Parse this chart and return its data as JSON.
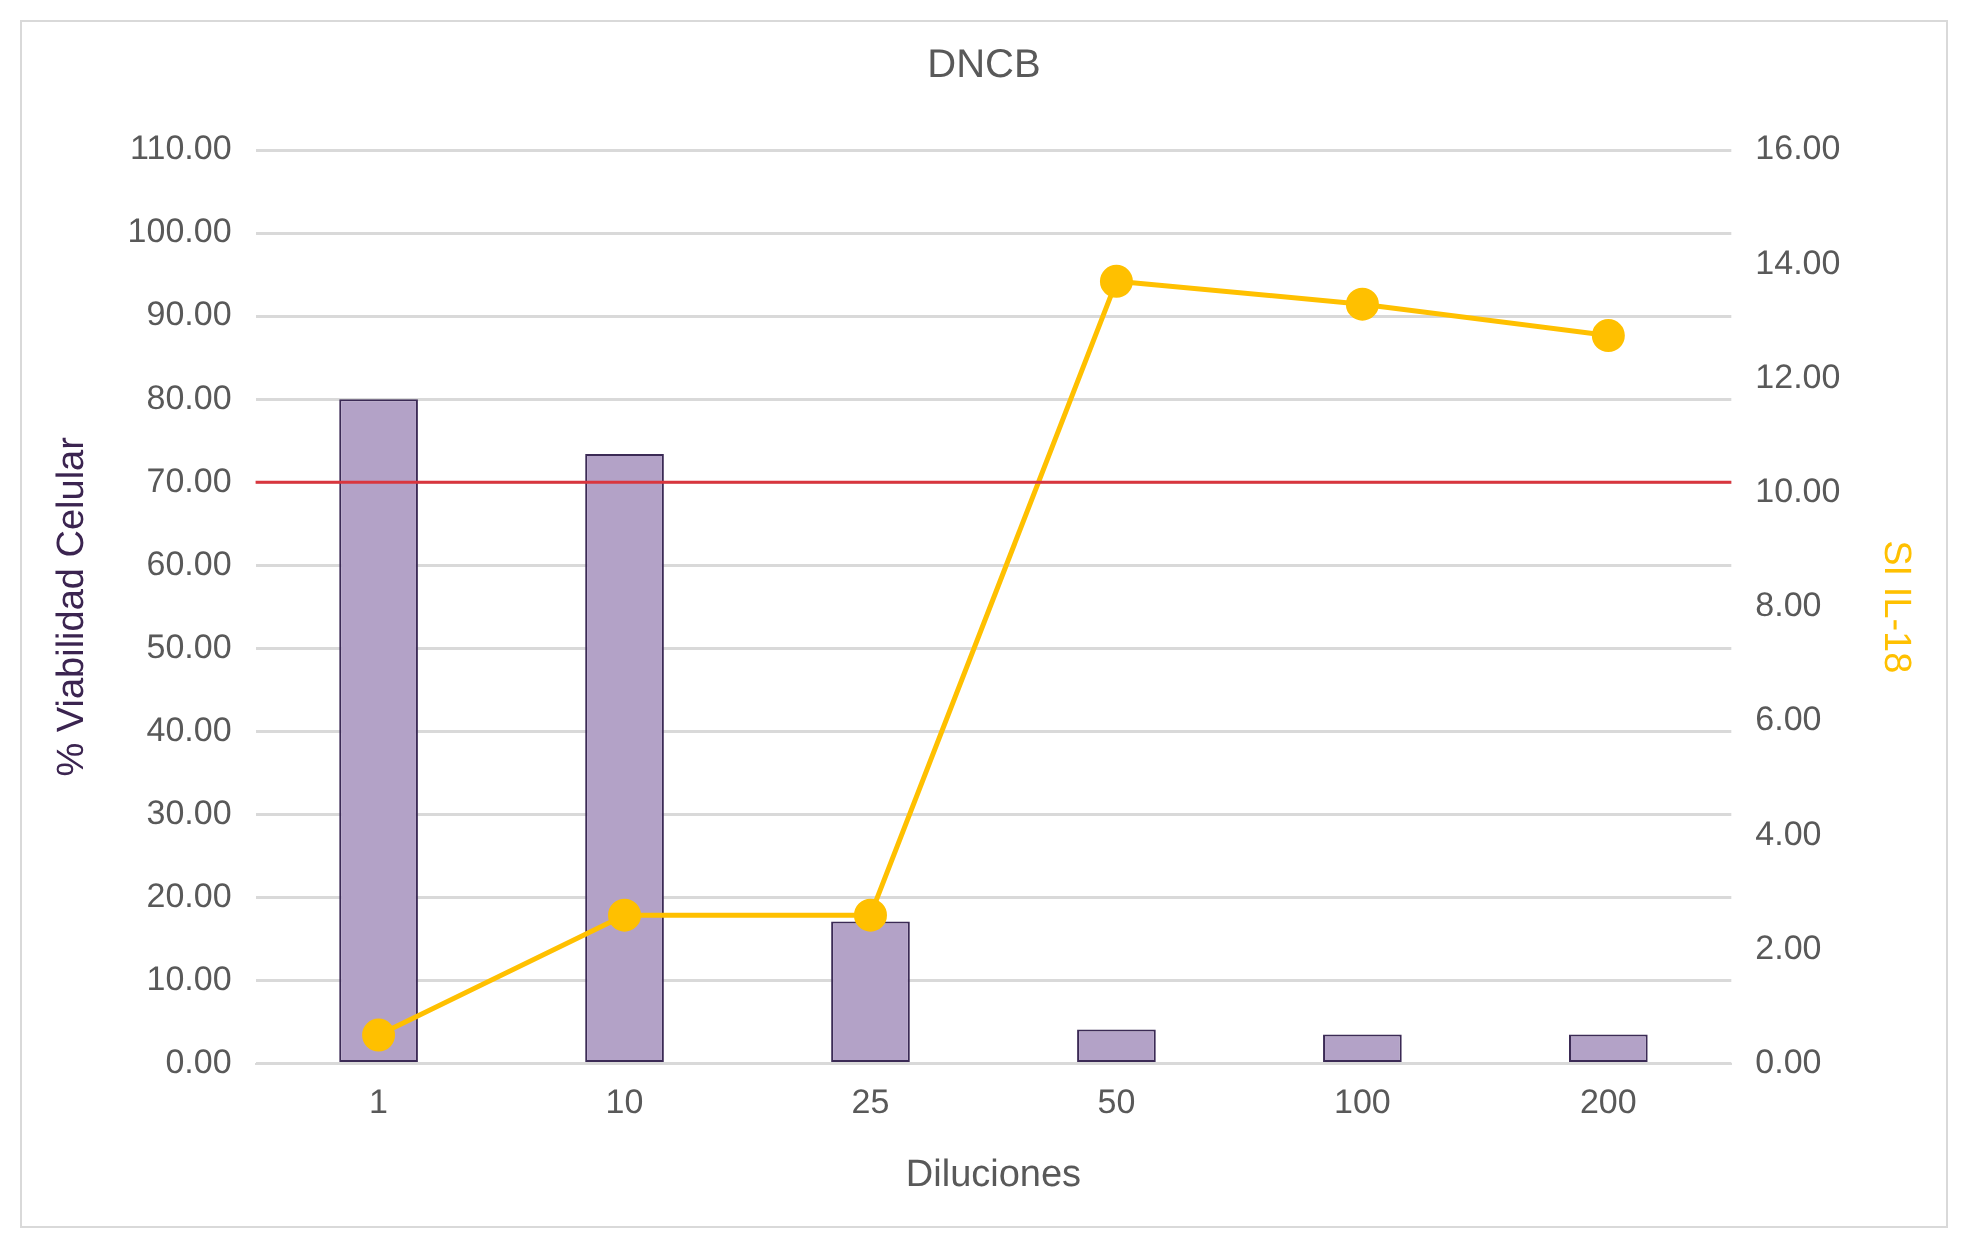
{
  "chart_data": {
    "type": "bar",
    "title": "DNCB",
    "xlabel": "Diluciones",
    "ylabel": "% Viabilidad Celular",
    "y2label": "SI IL-18",
    "categories": [
      "1",
      "10",
      "25",
      "50",
      "100",
      "200"
    ],
    "series": [
      {
        "color": "#b3a2c7",
        "values": [
          80.0,
          73.4,
          17.1,
          4.1,
          3.5,
          3.5
        ]
      },
      {
        "type": "line",
        "axis": "y2",
        "color": "#ffc000",
        "marker": "circle",
        "values": [
          0.5,
          2.6,
          2.6,
          13.7,
          13.3,
          12.75
        ]
      }
    ],
    "ylim": [
      0,
      110
    ],
    "yticks": [
      {
        "value": 0,
        "label": "0.00"
      },
      {
        "value": 10,
        "label": "10.00"
      },
      {
        "value": 20,
        "label": "20.00"
      },
      {
        "value": 30,
        "label": "30.00"
      },
      {
        "value": 40,
        "label": "40.00"
      },
      {
        "value": 50,
        "label": "50.00"
      },
      {
        "value": 60,
        "label": "60.00"
      },
      {
        "value": 70,
        "label": "70.00"
      },
      {
        "value": 80,
        "label": "80.00"
      },
      {
        "value": 90,
        "label": "90.00"
      },
      {
        "value": 100,
        "label": "100.00"
      },
      {
        "value": 110,
        "label": "110.00"
      }
    ],
    "y2lim": [
      0,
      16
    ],
    "y2ticks": [
      {
        "value": 0,
        "label": "0.00"
      },
      {
        "value": 2,
        "label": "2.00"
      },
      {
        "value": 4,
        "label": "4.00"
      },
      {
        "value": 6,
        "label": "6.00"
      },
      {
        "value": 8,
        "label": "8.00"
      },
      {
        "value": 10,
        "label": "10.00"
      },
      {
        "value": 12,
        "label": "12.00"
      },
      {
        "value": 14,
        "label": "14.00"
      },
      {
        "value": 16,
        "label": "16.00"
      }
    ],
    "ref_lines": [
      {
        "axis": "y",
        "value": 70,
        "color": "#d9363e"
      }
    ],
    "grid": "y",
    "legend": false
  }
}
